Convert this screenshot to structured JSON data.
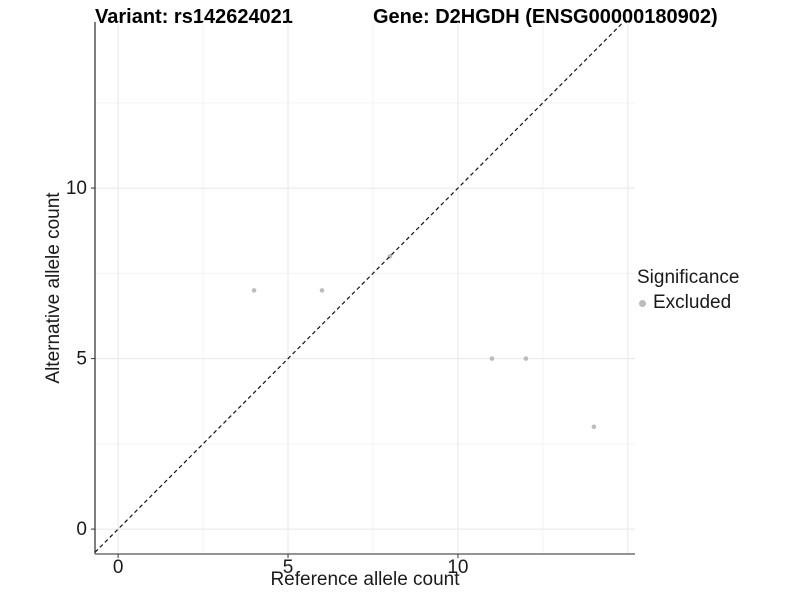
{
  "header": {
    "variant_title": "Variant: rs142624021",
    "gene_title": "Gene: D2HGDH (ENSG00000180902)"
  },
  "legend": {
    "title": "Significance",
    "items": [
      {
        "label": "Excluded",
        "color": "#bcbcbc"
      }
    ]
  },
  "chart_data": {
    "type": "scatter",
    "xlabel": "Reference allele count",
    "ylabel": "Alternative allele count",
    "x_axis": {
      "range": [
        -0.68,
        15.21
      ],
      "ticks": [
        0,
        5,
        10
      ],
      "grid_major": [
        0,
        5,
        10,
        15
      ],
      "grid_minor": [
        2.5,
        7.5,
        12.5
      ]
    },
    "y_axis": {
      "range": [
        -0.73,
        14.87
      ],
      "ticks": [
        0,
        5,
        10
      ],
      "grid_major": [
        0,
        5,
        10
      ],
      "grid_minor": [
        2.5,
        7.5,
        12.5
      ]
    },
    "series": [
      {
        "name": "Excluded",
        "color": "#bcbcbc",
        "point_radius": 2.3,
        "points": [
          [
            4,
            7
          ],
          [
            6,
            7
          ],
          [
            8,
            8
          ],
          [
            11,
            5
          ],
          [
            12,
            5
          ],
          [
            14,
            3
          ]
        ]
      }
    ],
    "identity_line": {
      "equation": "y = x",
      "style": "dashed",
      "from": -0.68,
      "to": 14.87,
      "color": "#111111"
    },
    "colors": {
      "grid_major": "#e8e8e8",
      "grid_minor": "#f3f3f3",
      "axis_line_left": "#2a2a2a",
      "axis_line_bottom": "#707070",
      "tick_mark": "#333333",
      "tick_label": "#1a1a1a"
    }
  }
}
